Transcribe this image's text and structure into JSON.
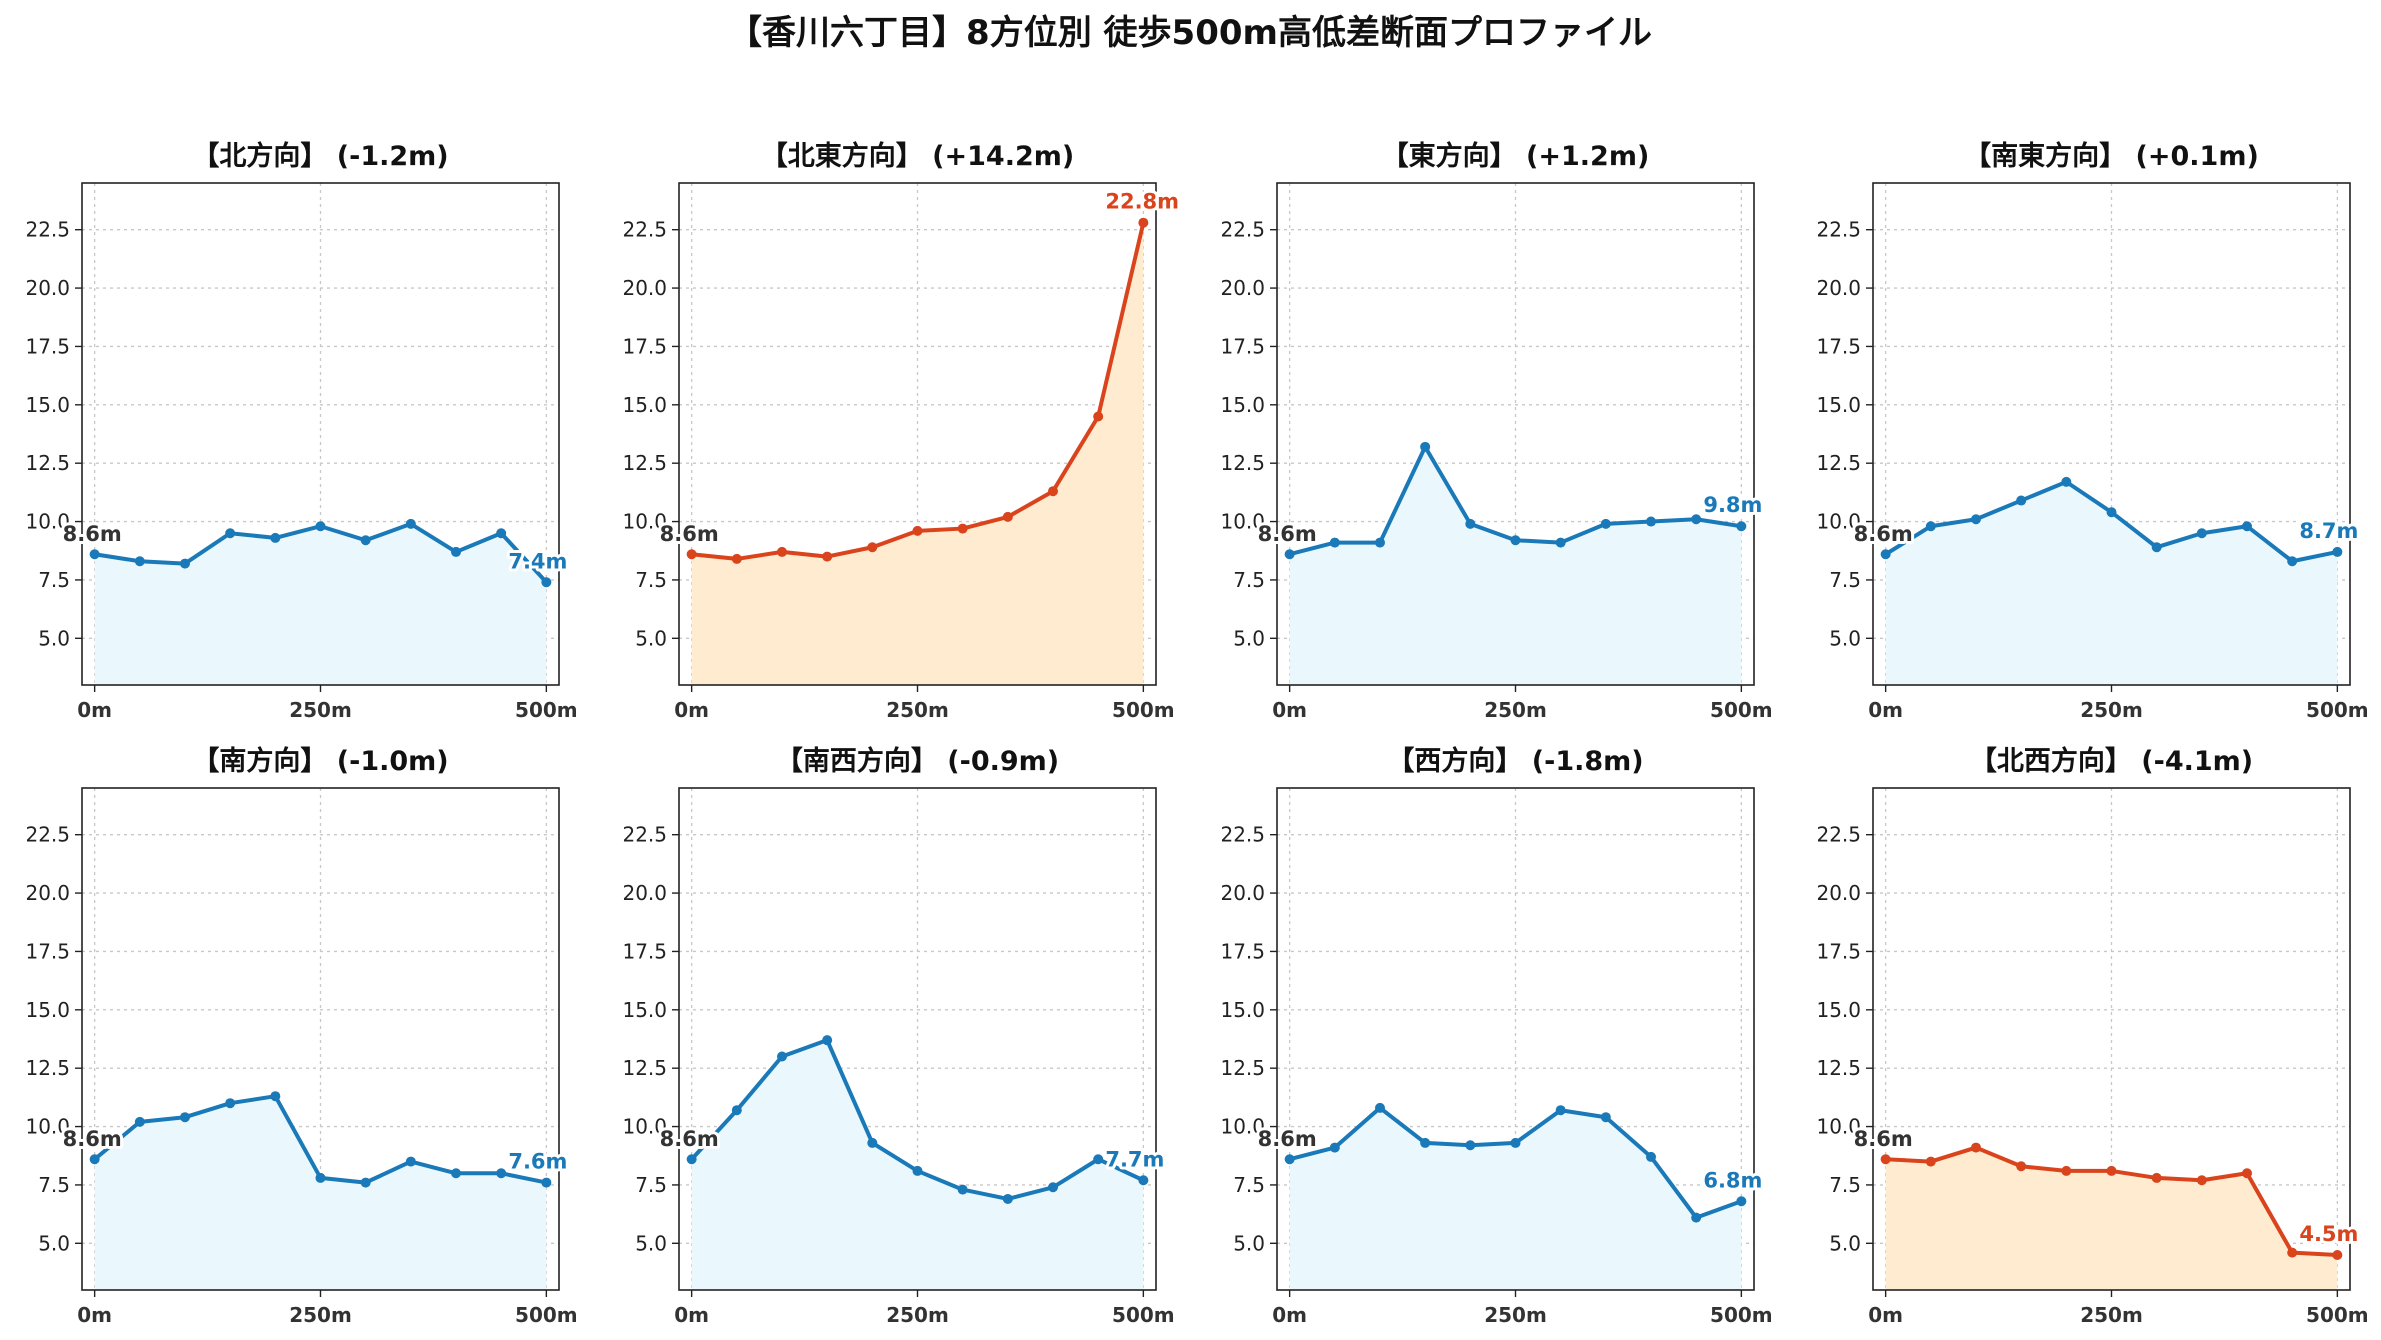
{
  "chart_data": {
    "title": "【香川六丁目】8方位別 徒歩500m高低差断面プロファイル",
    "type": "line",
    "x": [
      0,
      50,
      100,
      150,
      200,
      250,
      300,
      350,
      400,
      450,
      500
    ],
    "ylim": [
      3,
      24.5
    ],
    "y_ticks": [
      "5.0",
      "7.5",
      "10.0",
      "12.5",
      "15.0",
      "17.5",
      "20.0",
      "22.5"
    ],
    "x_ticks": [
      "0m",
      "250m",
      "500m"
    ],
    "grid": true,
    "colors": {
      "down_line": "#1a79b8",
      "down_fill": "#eaf7fc",
      "up_line": "#d9441c",
      "up_fill": "#ffecd0"
    },
    "panels": [
      {
        "title": "【北方向】 (-1.2m)",
        "theme": "blue",
        "values": [
          8.6,
          8.3,
          8.2,
          9.5,
          9.3,
          9.8,
          9.2,
          9.9,
          8.7,
          9.5,
          7.4
        ],
        "start_label": "8.6m",
        "end_label": "7.4m"
      },
      {
        "title": "【北東方向】 (+14.2m)",
        "theme": "orange",
        "values": [
          8.6,
          8.4,
          8.7,
          8.5,
          8.9,
          9.6,
          9.7,
          10.2,
          11.3,
          14.5,
          22.8
        ],
        "start_label": "8.6m",
        "end_label": "22.8m"
      },
      {
        "title": "【東方向】 (+1.2m)",
        "theme": "blue",
        "values": [
          8.6,
          9.1,
          9.1,
          13.2,
          9.9,
          9.2,
          9.1,
          9.9,
          10.0,
          10.1,
          9.8
        ],
        "start_label": "8.6m",
        "end_label": "9.8m"
      },
      {
        "title": "【南東方向】 (+0.1m)",
        "theme": "blue",
        "values": [
          8.6,
          9.8,
          10.1,
          10.9,
          11.7,
          10.4,
          8.9,
          9.5,
          9.8,
          8.3,
          8.7
        ],
        "start_label": "8.6m",
        "end_label": "8.7m"
      },
      {
        "title": "【南方向】 (-1.0m)",
        "theme": "blue",
        "values": [
          8.6,
          10.2,
          10.4,
          11.0,
          11.3,
          7.8,
          7.6,
          8.5,
          8.0,
          8.0,
          7.6
        ],
        "start_label": "8.6m",
        "end_label": "7.6m"
      },
      {
        "title": "【南西方向】 (-0.9m)",
        "theme": "blue",
        "values": [
          8.6,
          10.7,
          13.0,
          13.7,
          9.3,
          8.1,
          7.3,
          6.9,
          7.4,
          8.6,
          7.7
        ],
        "start_label": "8.6m",
        "end_label": "7.7m"
      },
      {
        "title": "【西方向】 (-1.8m)",
        "theme": "blue",
        "values": [
          8.6,
          9.1,
          10.8,
          9.3,
          9.2,
          9.3,
          10.7,
          10.4,
          8.7,
          6.1,
          6.8
        ],
        "start_label": "8.6m",
        "end_label": "6.8m"
      },
      {
        "title": "【北西方向】 (-4.1m)",
        "theme": "orange",
        "values": [
          8.6,
          8.5,
          9.1,
          8.3,
          8.1,
          8.1,
          7.8,
          7.7,
          8.0,
          4.6,
          4.5
        ],
        "start_label": "8.6m",
        "end_label": "4.5m"
      }
    ]
  }
}
